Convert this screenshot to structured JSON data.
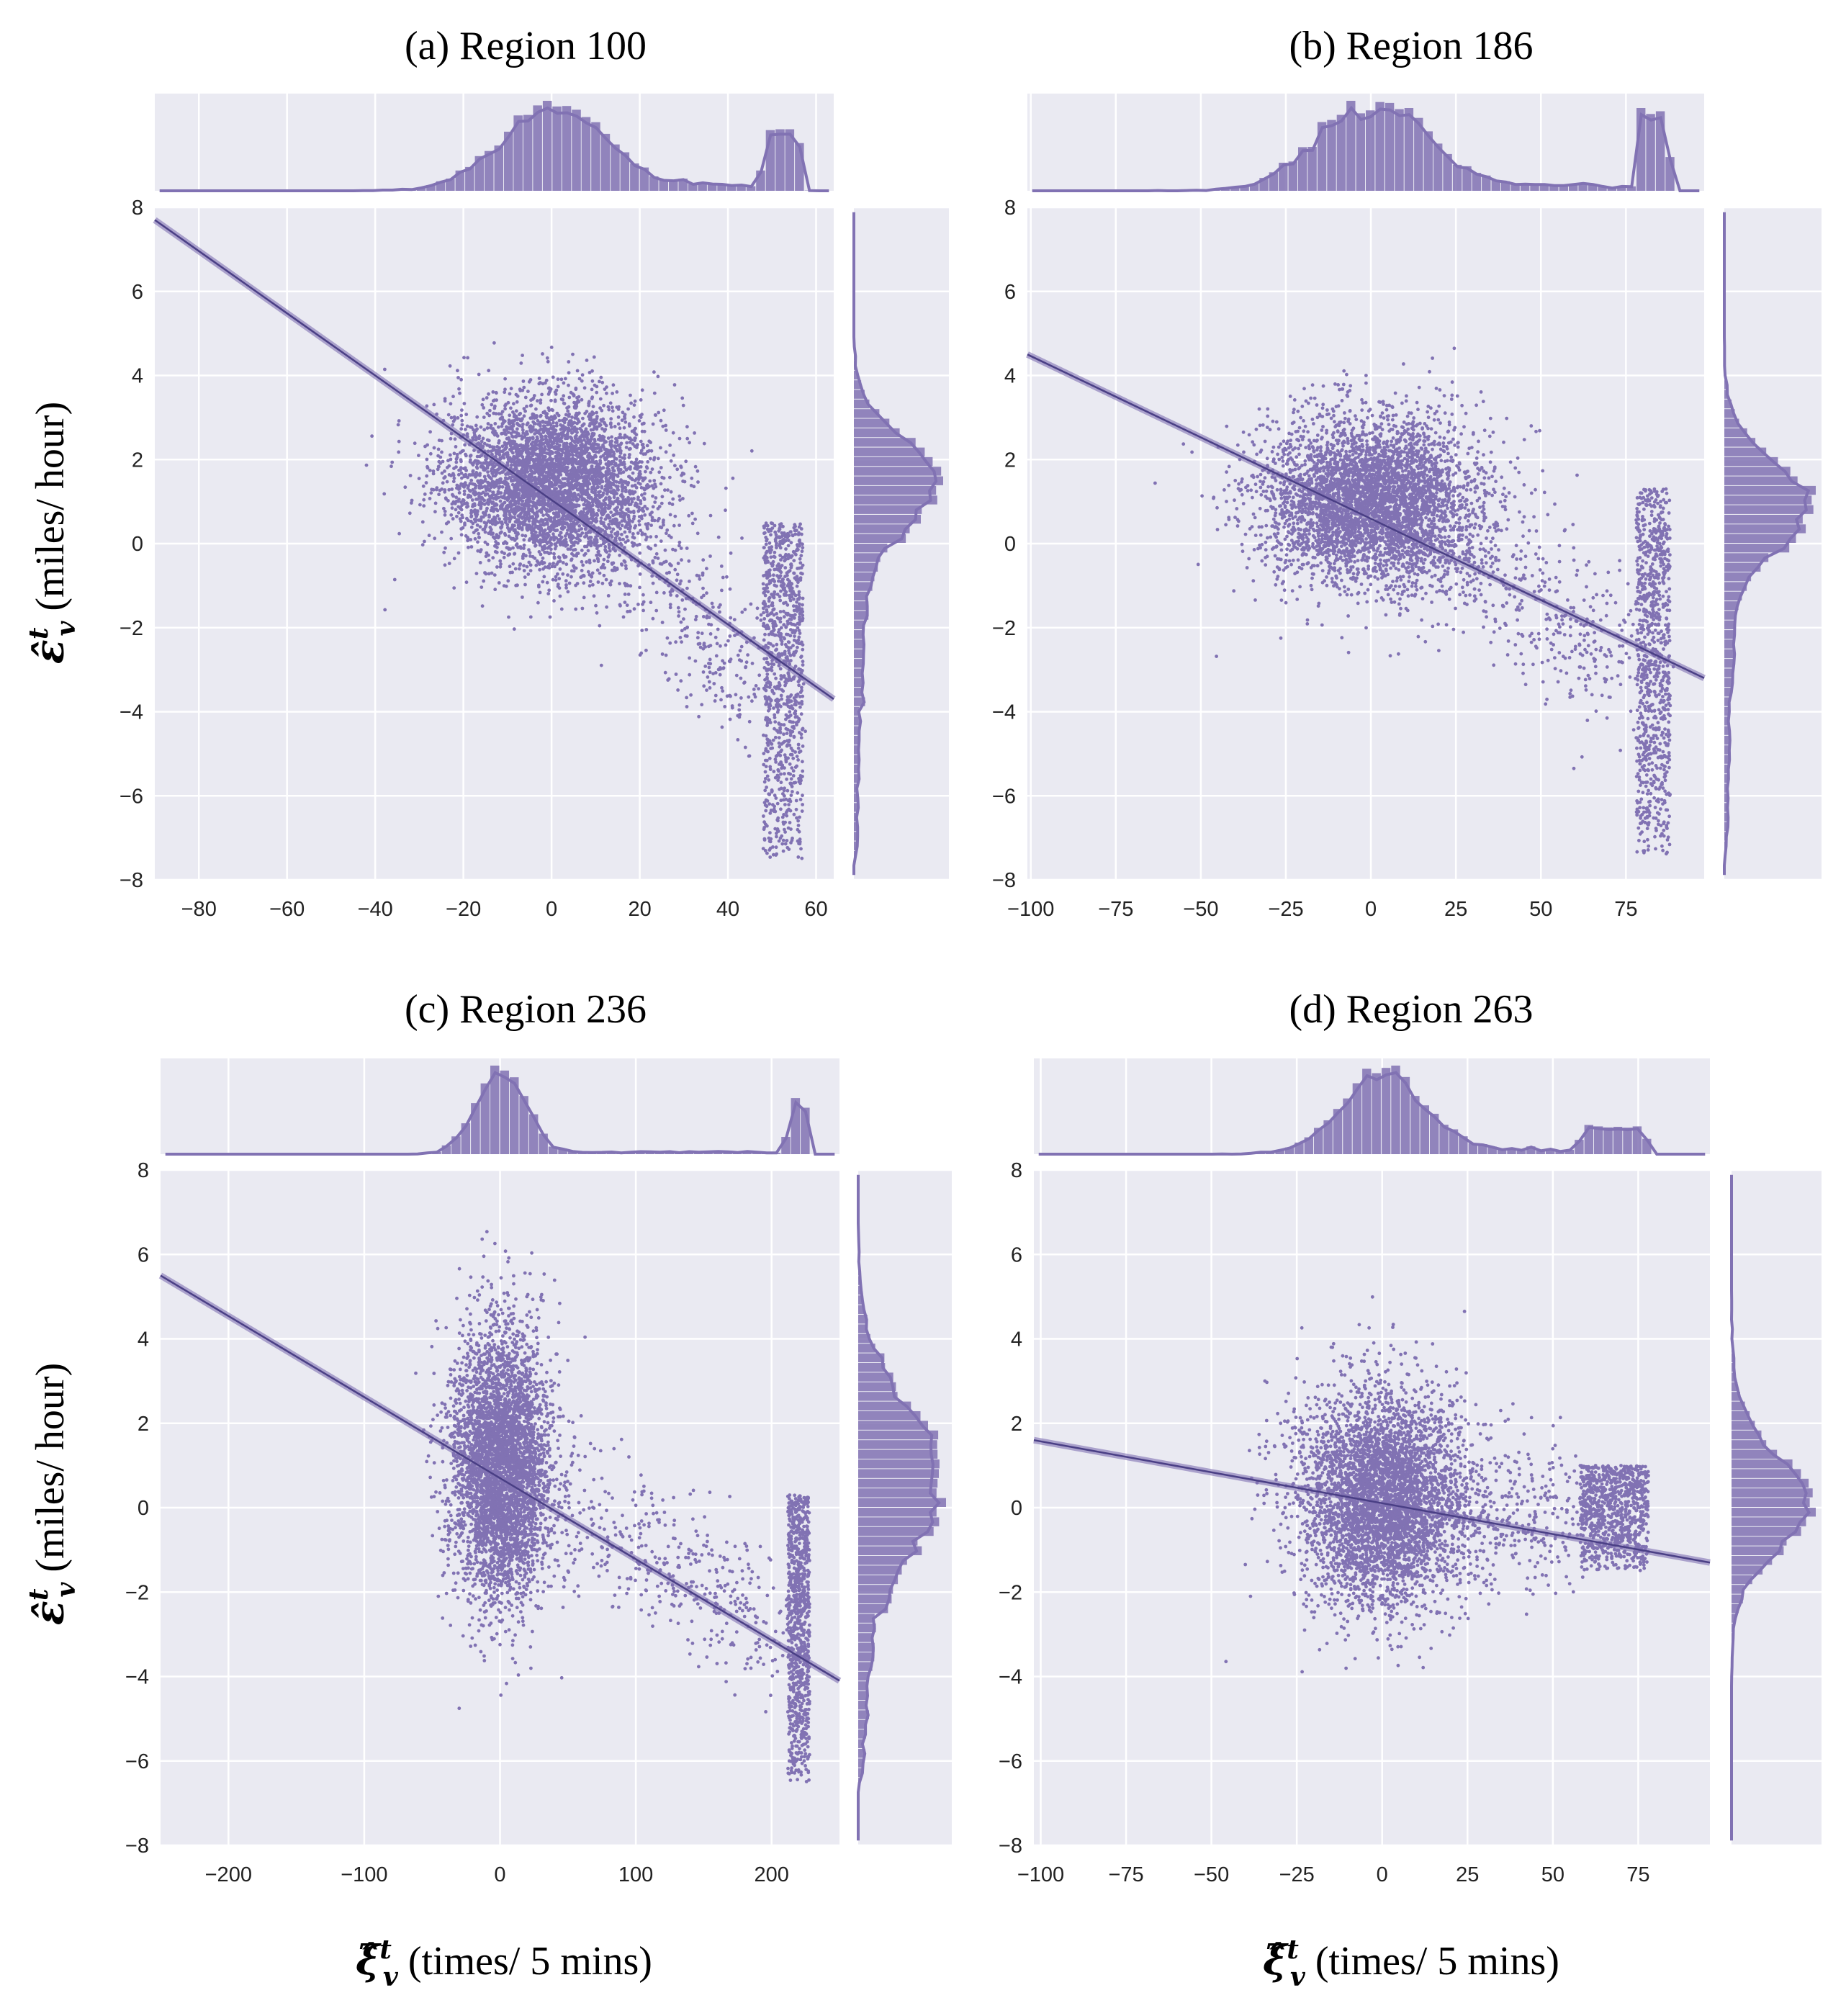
{
  "figure": {
    "ylabel": {
      "symbol": "ε̂",
      "sup": "t",
      "sub": "v",
      "unit": "(miles/ hour)"
    },
    "xlabel": {
      "symbol": "ξ̂",
      "sup": "t",
      "sub": "v",
      "unit": "(times/ 5 mins)"
    }
  },
  "colors": {
    "background": "#eaeaf2",
    "grid": "#ffffff",
    "points": "#8172b3",
    "line": "#4a3f85",
    "hist": "#8172b3"
  },
  "chart_data": [
    {
      "type": "scatter",
      "title": "(a) Region 100",
      "xlim": [
        -90,
        64
      ],
      "ylim": [
        -8,
        8
      ],
      "xticks": [
        -80,
        -60,
        -40,
        -20,
        0,
        20,
        40,
        60
      ],
      "yticks": [
        -8,
        -6,
        -4,
        -2,
        0,
        2,
        4,
        6,
        8
      ],
      "regression": {
        "x": [
          -90,
          64
        ],
        "y": [
          7.7,
          -3.7
        ]
      },
      "main_cluster": {
        "center": [
          0,
          1.5
        ],
        "spread": [
          12,
          1.0
        ]
      },
      "tail_band": {
        "x": [
          48,
          57
        ],
        "y": [
          -7.5,
          0.5
        ]
      },
      "x_hist_peaks": [
        0,
        55
      ],
      "y_hist_peak": 1.7
    },
    {
      "type": "scatter",
      "title": "(b) Region 186",
      "xlim": [
        -101,
        98
      ],
      "ylim": [
        -8,
        8
      ],
      "xticks": [
        -100,
        -75,
        -50,
        -25,
        0,
        25,
        50,
        75
      ],
      "yticks": [
        -8,
        -6,
        -4,
        -2,
        0,
        2,
        4,
        6,
        8
      ],
      "regression": {
        "x": [
          -101,
          98
        ],
        "y": [
          4.5,
          -3.2
        ]
      },
      "main_cluster": {
        "center": [
          0,
          1.0
        ],
        "spread": [
          16,
          1.0
        ]
      },
      "tail_band": {
        "x": [
          78,
          88
        ],
        "y": [
          -7.5,
          1.3
        ]
      },
      "x_hist_peaks": [
        0,
        85
      ],
      "y_hist_peak": 1.1
    },
    {
      "type": "scatter",
      "title": "(c) Region 236",
      "xlim": [
        -250,
        250
      ],
      "ylim": [
        -8,
        8
      ],
      "xticks": [
        -200,
        -100,
        0,
        100,
        200
      ],
      "yticks": [
        -8,
        -6,
        -4,
        -2,
        0,
        2,
        4,
        6,
        8
      ],
      "regression": {
        "x": [
          -250,
          250
        ],
        "y": [
          5.5,
          -4.1
        ]
      },
      "main_cluster": {
        "center": [
          0,
          1.0
        ],
        "spread": [
          18,
          1.6
        ]
      },
      "tail_band": {
        "x": [
          212,
          228
        ],
        "y": [
          -6.5,
          0.3
        ]
      },
      "x_hist_peaks": [
        0,
        222
      ],
      "y_hist_peak": 0.5
    },
    {
      "type": "scatter",
      "title": "(d) Region 263",
      "xlim": [
        -102,
        96
      ],
      "ylim": [
        -8,
        8
      ],
      "xticks": [
        -100,
        -75,
        -50,
        -25,
        0,
        25,
        50,
        75
      ],
      "yticks": [
        -8,
        -6,
        -4,
        -2,
        0,
        2,
        4,
        6,
        8
      ],
      "regression": {
        "x": [
          -102,
          96
        ],
        "y": [
          1.6,
          -1.3
        ]
      },
      "main_cluster": {
        "center": [
          0,
          0.2
        ],
        "spread": [
          12,
          1.3
        ]
      },
      "tail_band": {
        "x": [
          58,
          78
        ],
        "y": [
          -1.5,
          1.0
        ]
      },
      "x_hist_peaks": [
        0,
        70
      ],
      "y_hist_peak": 0.0
    }
  ]
}
